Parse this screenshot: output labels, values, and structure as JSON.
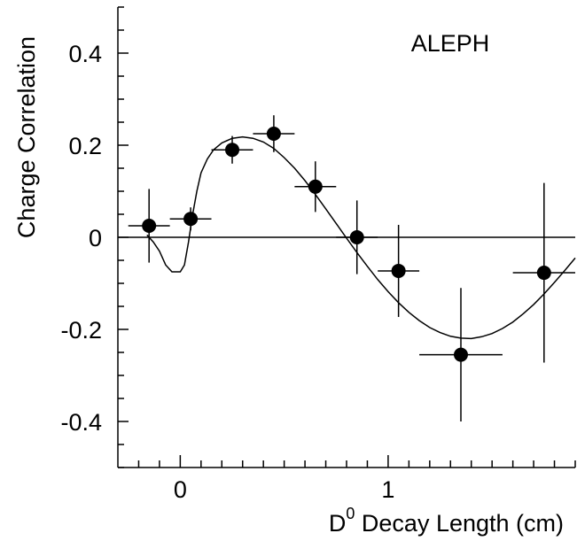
{
  "chart_data": {
    "type": "scatter",
    "title": "",
    "experiment_label": "ALEPH",
    "xlabel": {
      "base": "D",
      "superscript": "0",
      "rest": " Decay Length (cm)"
    },
    "ylabel": "Charge Correlation",
    "xlim": [
      -0.3,
      1.9
    ],
    "ylim": [
      -0.5,
      0.5
    ],
    "x_ticks": [
      {
        "value": 0,
        "label": "0"
      },
      {
        "value": 1,
        "label": "1"
      }
    ],
    "y_ticks": [
      {
        "value": 0.4,
        "label": "0.4"
      },
      {
        "value": 0.2,
        "label": "0.2"
      },
      {
        "value": 0,
        "label": "0"
      },
      {
        "value": -0.2,
        "label": "-0.2"
      },
      {
        "value": -0.4,
        "label": "-0.4"
      }
    ],
    "x_minor_step": 0.1,
    "y_minor_step": 0.05,
    "zero_line": true,
    "grid": false,
    "points": [
      {
        "x": -0.15,
        "y": 0.025,
        "xerr": 0.1,
        "yerr_up": 0.08,
        "yerr_down": 0.08
      },
      {
        "x": 0.05,
        "y": 0.04,
        "xerr": 0.1,
        "yerr_up": 0.025,
        "yerr_down": 0.025
      },
      {
        "x": 0.25,
        "y": 0.19,
        "xerr": 0.1,
        "yerr_up": 0.03,
        "yerr_down": 0.03
      },
      {
        "x": 0.45,
        "y": 0.225,
        "xerr": 0.1,
        "yerr_up": 0.04,
        "yerr_down": 0.04
      },
      {
        "x": 0.65,
        "y": 0.11,
        "xerr": 0.1,
        "yerr_up": 0.055,
        "yerr_down": 0.055
      },
      {
        "x": 0.85,
        "y": 0.0,
        "xerr": 0.1,
        "yerr_up": 0.08,
        "yerr_down": 0.08
      },
      {
        "x": 1.05,
        "y": -0.073,
        "xerr": 0.1,
        "yerr_up": 0.1,
        "yerr_down": 0.1
      },
      {
        "x": 1.35,
        "y": -0.255,
        "xerr": 0.2,
        "yerr_up": 0.145,
        "yerr_down": 0.145
      },
      {
        "x": 1.75,
        "y": -0.077,
        "xerr": 0.15,
        "yerr_up": 0.195,
        "yerr_down": 0.195
      }
    ],
    "fit_curve": [
      [
        -0.16,
        0.005
      ],
      [
        -0.13,
        -0.01
      ],
      [
        -0.1,
        -0.03
      ],
      [
        -0.07,
        -0.06
      ],
      [
        -0.04,
        -0.075
      ],
      [
        -0.02,
        -0.075
      ],
      [
        0.0,
        -0.075
      ],
      [
        0.02,
        -0.06
      ],
      [
        0.04,
        -0.01
      ],
      [
        0.06,
        0.05
      ],
      [
        0.08,
        0.1
      ],
      [
        0.1,
        0.14
      ],
      [
        0.13,
        0.17
      ],
      [
        0.16,
        0.19
      ],
      [
        0.2,
        0.205
      ],
      [
        0.25,
        0.215
      ],
      [
        0.3,
        0.218
      ],
      [
        0.35,
        0.215
      ],
      [
        0.4,
        0.207
      ],
      [
        0.45,
        0.193
      ],
      [
        0.5,
        0.173
      ],
      [
        0.55,
        0.15
      ],
      [
        0.6,
        0.123
      ],
      [
        0.65,
        0.093
      ],
      [
        0.7,
        0.062
      ],
      [
        0.75,
        0.03
      ],
      [
        0.8,
        -0.002
      ],
      [
        0.85,
        -0.033
      ],
      [
        0.9,
        -0.063
      ],
      [
        0.95,
        -0.092
      ],
      [
        1.0,
        -0.118
      ],
      [
        1.05,
        -0.142
      ],
      [
        1.1,
        -0.163
      ],
      [
        1.15,
        -0.181
      ],
      [
        1.2,
        -0.196
      ],
      [
        1.25,
        -0.207
      ],
      [
        1.3,
        -0.215
      ],
      [
        1.35,
        -0.219
      ],
      [
        1.4,
        -0.22
      ],
      [
        1.45,
        -0.216
      ],
      [
        1.5,
        -0.209
      ],
      [
        1.55,
        -0.198
      ],
      [
        1.6,
        -0.184
      ],
      [
        1.65,
        -0.166
      ],
      [
        1.7,
        -0.146
      ],
      [
        1.75,
        -0.123
      ],
      [
        1.8,
        -0.098
      ],
      [
        1.85,
        -0.072
      ],
      [
        1.9,
        -0.045
      ]
    ]
  }
}
